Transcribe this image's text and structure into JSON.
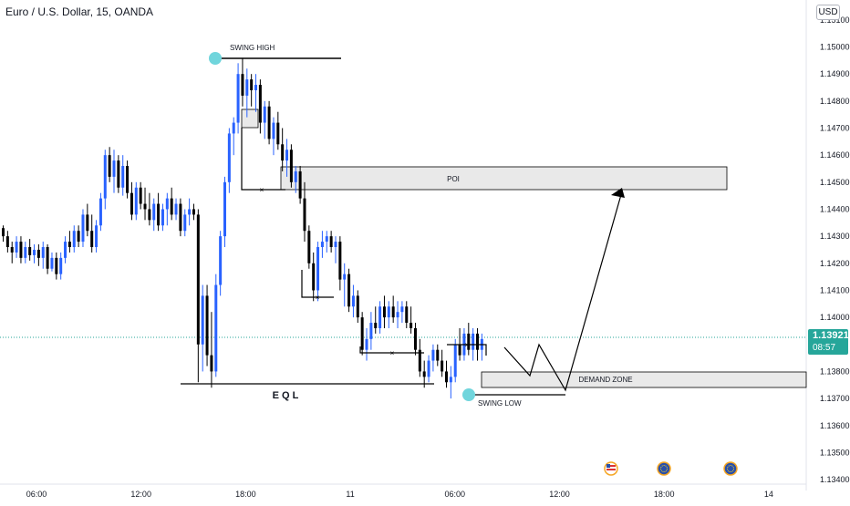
{
  "header": {
    "symbol_title": "Euro / U.S. Dollar, 15, OANDA",
    "currency": "USD"
  },
  "price_tag": {
    "price": "1.13921",
    "countdown": "08:57",
    "color": "#26a69a"
  },
  "colors": {
    "up_candle": "#2962ff",
    "down_candle": "#000000",
    "zone_fill": "#e9e9e9",
    "marker": "#70d5dc",
    "current_price_line": "#26a69a"
  },
  "chart_data": {
    "type": "candlestick",
    "x_ticks": [
      "06:00",
      "12:00",
      "18:00",
      "11",
      "06:00",
      "12:00",
      "18:00",
      "14"
    ],
    "y_ticks": [
      "1.15100",
      "1.15000",
      "1.14900",
      "1.14800",
      "1.14700",
      "1.14600",
      "1.14500",
      "1.14400",
      "1.14300",
      "1.14200",
      "1.14100",
      "1.14000",
      "1.13800",
      "1.13700",
      "1.13600",
      "1.13500",
      "1.13400"
    ],
    "ylim": [
      1.1338,
      1.1514
    ],
    "current_price": 1.13921,
    "grid": false,
    "candles": [
      [
        1.1433,
        1.1434,
        1.1428,
        1.143
      ],
      [
        1.143,
        1.1432,
        1.1424,
        1.1426
      ],
      [
        1.1426,
        1.1428,
        1.142,
        1.1424
      ],
      [
        1.1424,
        1.143,
        1.1422,
        1.1428
      ],
      [
        1.1428,
        1.143,
        1.142,
        1.1422
      ],
      [
        1.1422,
        1.1428,
        1.142,
        1.1426
      ],
      [
        1.1426,
        1.1429,
        1.1421,
        1.1423
      ],
      [
        1.1423,
        1.1427,
        1.142,
        1.1425
      ],
      [
        1.1425,
        1.1427,
        1.1419,
        1.1422
      ],
      [
        1.1422,
        1.1428,
        1.1418,
        1.1426
      ],
      [
        1.1426,
        1.1427,
        1.1416,
        1.1418
      ],
      [
        1.1418,
        1.1424,
        1.1417,
        1.1422
      ],
      [
        1.1422,
        1.1424,
        1.1414,
        1.1416
      ],
      [
        1.1416,
        1.1424,
        1.1414,
        1.1422
      ],
      [
        1.1422,
        1.143,
        1.142,
        1.1428
      ],
      [
        1.1428,
        1.1432,
        1.1424,
        1.1426
      ],
      [
        1.1426,
        1.1434,
        1.1424,
        1.1432
      ],
      [
        1.1432,
        1.1434,
        1.1426,
        1.1428
      ],
      [
        1.1428,
        1.144,
        1.1426,
        1.1438
      ],
      [
        1.1438,
        1.1442,
        1.143,
        1.1432
      ],
      [
        1.1432,
        1.1438,
        1.1424,
        1.1426
      ],
      [
        1.1426,
        1.1436,
        1.1424,
        1.1434
      ],
      [
        1.1434,
        1.1446,
        1.1432,
        1.1444
      ],
      [
        1.1444,
        1.1462,
        1.144,
        1.146
      ],
      [
        1.146,
        1.1463,
        1.145,
        1.1452
      ],
      [
        1.1452,
        1.1462,
        1.1446,
        1.1458
      ],
      [
        1.1458,
        1.146,
        1.1446,
        1.1448
      ],
      [
        1.1448,
        1.146,
        1.1445,
        1.1456
      ],
      [
        1.1456,
        1.1458,
        1.1444,
        1.1446
      ],
      [
        1.1446,
        1.145,
        1.1436,
        1.1438
      ],
      [
        1.1438,
        1.145,
        1.1436,
        1.1448
      ],
      [
        1.1448,
        1.145,
        1.144,
        1.1442
      ],
      [
        1.1442,
        1.1448,
        1.1436,
        1.144
      ],
      [
        1.144,
        1.1446,
        1.1434,
        1.1436
      ],
      [
        1.1436,
        1.1444,
        1.1432,
        1.1442
      ],
      [
        1.1442,
        1.1446,
        1.1432,
        1.1434
      ],
      [
        1.1434,
        1.1442,
        1.1432,
        1.144
      ],
      [
        1.144,
        1.1446,
        1.1434,
        1.1444
      ],
      [
        1.1444,
        1.1448,
        1.1436,
        1.1438
      ],
      [
        1.1438,
        1.1444,
        1.1436,
        1.1442
      ],
      [
        1.1442,
        1.1444,
        1.143,
        1.1432
      ],
      [
        1.1432,
        1.144,
        1.143,
        1.1438
      ],
      [
        1.1438,
        1.1444,
        1.1434,
        1.144
      ],
      [
        1.144,
        1.1442,
        1.1436,
        1.1438
      ],
      [
        1.1438,
        1.144,
        1.1376,
        1.139
      ],
      [
        1.139,
        1.1412,
        1.138,
        1.1408
      ],
      [
        1.1408,
        1.1412,
        1.1382,
        1.1386
      ],
      [
        1.1386,
        1.1402,
        1.1374,
        1.138
      ],
      [
        1.138,
        1.1416,
        1.1378,
        1.1412
      ],
      [
        1.1412,
        1.1432,
        1.1408,
        1.143
      ],
      [
        1.143,
        1.1452,
        1.1426,
        1.145
      ],
      [
        1.145,
        1.147,
        1.1446,
        1.1468
      ],
      [
        1.1468,
        1.1474,
        1.146,
        1.1472
      ],
      [
        1.1472,
        1.1494,
        1.1468,
        1.149
      ],
      [
        1.149,
        1.1496,
        1.1478,
        1.1482
      ],
      [
        1.1482,
        1.1492,
        1.1474,
        1.1488
      ],
      [
        1.1488,
        1.149,
        1.1478,
        1.1484
      ],
      [
        1.1484,
        1.149,
        1.1476,
        1.1486
      ],
      [
        1.1486,
        1.1488,
        1.1468,
        1.1472
      ],
      [
        1.1472,
        1.148,
        1.1466,
        1.1478
      ],
      [
        1.1478,
        1.148,
        1.1464,
        1.1466
      ],
      [
        1.1466,
        1.1474,
        1.146,
        1.1472
      ],
      [
        1.1472,
        1.1476,
        1.1462,
        1.1464
      ],
      [
        1.1464,
        1.147,
        1.1454,
        1.1458
      ],
      [
        1.1458,
        1.1466,
        1.1452,
        1.1462
      ],
      [
        1.1462,
        1.1464,
        1.1448,
        1.145
      ],
      [
        1.145,
        1.1456,
        1.1446,
        1.1454
      ],
      [
        1.1454,
        1.1456,
        1.1442,
        1.1444
      ],
      [
        1.1444,
        1.145,
        1.1428,
        1.1432
      ],
      [
        1.1432,
        1.1434,
        1.1418,
        1.142
      ],
      [
        1.142,
        1.1424,
        1.1406,
        1.141
      ],
      [
        1.141,
        1.1428,
        1.1406,
        1.1426
      ],
      [
        1.1426,
        1.1432,
        1.1422,
        1.1428
      ],
      [
        1.1428,
        1.1432,
        1.1424,
        1.143
      ],
      [
        1.143,
        1.1432,
        1.1424,
        1.1426
      ],
      [
        1.1426,
        1.143,
        1.142,
        1.1428
      ],
      [
        1.1428,
        1.143,
        1.141,
        1.1414
      ],
      [
        1.1414,
        1.142,
        1.1404,
        1.1416
      ],
      [
        1.1416,
        1.1418,
        1.1402,
        1.1404
      ],
      [
        1.1404,
        1.1412,
        1.14,
        1.1408
      ],
      [
        1.1408,
        1.141,
        1.1398,
        1.14
      ],
      [
        1.14,
        1.1402,
        1.1386,
        1.1388
      ],
      [
        1.1388,
        1.1396,
        1.1384,
        1.1392
      ],
      [
        1.1392,
        1.1402,
        1.1388,
        1.1398
      ],
      [
        1.1398,
        1.1404,
        1.1394,
        1.1396
      ],
      [
        1.1396,
        1.1406,
        1.1394,
        1.1404
      ],
      [
        1.1404,
        1.1408,
        1.1396,
        1.14
      ],
      [
        1.14,
        1.1406,
        1.1396,
        1.1404
      ],
      [
        1.1404,
        1.1408,
        1.1398,
        1.14
      ],
      [
        1.14,
        1.1406,
        1.1396,
        1.1402
      ],
      [
        1.1402,
        1.1406,
        1.1398,
        1.1404
      ],
      [
        1.1404,
        1.1406,
        1.1396,
        1.1398
      ],
      [
        1.1398,
        1.1404,
        1.1394,
        1.1396
      ],
      [
        1.1396,
        1.1398,
        1.1386,
        1.1388
      ],
      [
        1.1388,
        1.1392,
        1.1378,
        1.138
      ],
      [
        1.138,
        1.1384,
        1.1374,
        1.1378
      ],
      [
        1.1378,
        1.1386,
        1.1376,
        1.1384
      ],
      [
        1.1384,
        1.139,
        1.138,
        1.1388
      ],
      [
        1.1388,
        1.139,
        1.1382,
        1.1384
      ],
      [
        1.1384,
        1.1388,
        1.1378,
        1.138
      ],
      [
        1.138,
        1.1384,
        1.1374,
        1.1376
      ],
      [
        1.1376,
        1.1382,
        1.137,
        1.1378
      ],
      [
        1.1378,
        1.1392,
        1.1376,
        1.139
      ],
      [
        1.139,
        1.1396,
        1.1384,
        1.1386
      ],
      [
        1.1386,
        1.1396,
        1.1384,
        1.1394
      ],
      [
        1.1394,
        1.1398,
        1.1386,
        1.1388
      ],
      [
        1.1388,
        1.1396,
        1.1384,
        1.1394
      ],
      [
        1.1394,
        1.1396,
        1.1384,
        1.1388
      ],
      [
        1.1388,
        1.1394,
        1.1384,
        1.1392
      ]
    ],
    "annotations": {
      "swing_high": "SWING HIGH",
      "swing_low": "SWING LOW",
      "poi": "POI",
      "demand_zone": "DEMAND ZONE",
      "eql": "E Q L"
    }
  }
}
